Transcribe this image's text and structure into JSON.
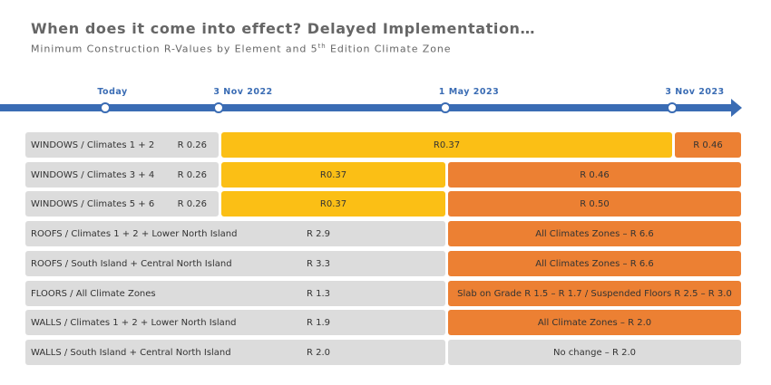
{
  "title": "When does it come into effect? Delayed Implementation…",
  "subtitle_main": "Minimum Construction R-Values by Element and 5",
  "subtitle_sup": "th",
  "subtitle_end": " Edition Climate Zone",
  "colors": {
    "timeline": "#3a6cb4",
    "current": "#dcdcdc",
    "stage_yellow": "#fbbf15",
    "stage_orange": "#ec8033"
  },
  "timeline": {
    "milestones": [
      {
        "label": "Today"
      },
      {
        "label": "3 Nov 2022"
      },
      {
        "label": "1 May 2023"
      },
      {
        "label": "3 Nov 2023"
      }
    ]
  },
  "chart_data": {
    "type": "table",
    "title": "When does it come into effect? Delayed Implementation…",
    "subtitle": "Minimum Construction R-Values by Element and 5th Edition Climate Zone",
    "columns": [
      "Today",
      "3 Nov 2022",
      "1 May 2023",
      "3 Nov 2023"
    ],
    "rows": [
      {
        "label": "WINDOWS / Climates 1 + 2",
        "cells": [
          {
            "text": "R 0.26",
            "from": 0,
            "to": 1,
            "color": "gray"
          },
          {
            "text": "R0.37",
            "from": 1,
            "to": 3,
            "color": "yellow"
          },
          {
            "text": "R 0.46",
            "from": 3,
            "to": 4,
            "color": "orange"
          }
        ]
      },
      {
        "label": "WINDOWS / Climates 3 + 4",
        "cells": [
          {
            "text": "R 0.26",
            "from": 0,
            "to": 1,
            "color": "gray"
          },
          {
            "text": "R0.37",
            "from": 1,
            "to": 2,
            "color": "yellow"
          },
          {
            "text": "R 0.46",
            "from": 2,
            "to": 4,
            "color": "orange"
          }
        ]
      },
      {
        "label": "WINDOWS / Climates 5 + 6",
        "cells": [
          {
            "text": "R 0.26",
            "from": 0,
            "to": 1,
            "color": "gray"
          },
          {
            "text": "R0.37",
            "from": 1,
            "to": 2,
            "color": "yellow"
          },
          {
            "text": "R 0.50",
            "from": 2,
            "to": 4,
            "color": "orange"
          }
        ]
      },
      {
        "label": "ROOFS / Climates 1 + 2 + Lower North Island",
        "cells": [
          {
            "text": "R 2.9",
            "from": 0,
            "to": 2,
            "color": "gray"
          },
          {
            "text": "All Climates Zones – R 6.6",
            "from": 2,
            "to": 4,
            "color": "orange"
          }
        ]
      },
      {
        "label": "ROOFS / South Island + Central North Island",
        "cells": [
          {
            "text": "R 3.3",
            "from": 0,
            "to": 2,
            "color": "gray"
          },
          {
            "text": "All Climates Zones – R 6.6",
            "from": 2,
            "to": 4,
            "color": "orange"
          }
        ]
      },
      {
        "label": "FLOORS / All Climate Zones",
        "cells": [
          {
            "text": "R 1.3",
            "from": 0,
            "to": 2,
            "color": "gray"
          },
          {
            "text": "Slab on Grade R 1.5 – R 1.7 / Suspended Floors R 2.5 – R 3.0",
            "from": 2,
            "to": 4,
            "color": "orange"
          }
        ]
      },
      {
        "label": "WALLS / Climates 1 + 2 + Lower North Island",
        "cells": [
          {
            "text": "R 1.9",
            "from": 0,
            "to": 2,
            "color": "gray"
          },
          {
            "text": "All Climate Zones – R 2.0",
            "from": 2,
            "to": 4,
            "color": "orange"
          }
        ]
      },
      {
        "label": "WALLS / South Island + Central North Island",
        "cells": [
          {
            "text": "R 2.0",
            "from": 0,
            "to": 2,
            "color": "gray"
          },
          {
            "text": "No change – R 2.0",
            "from": 2,
            "to": 4,
            "color": "gray"
          }
        ]
      }
    ]
  }
}
